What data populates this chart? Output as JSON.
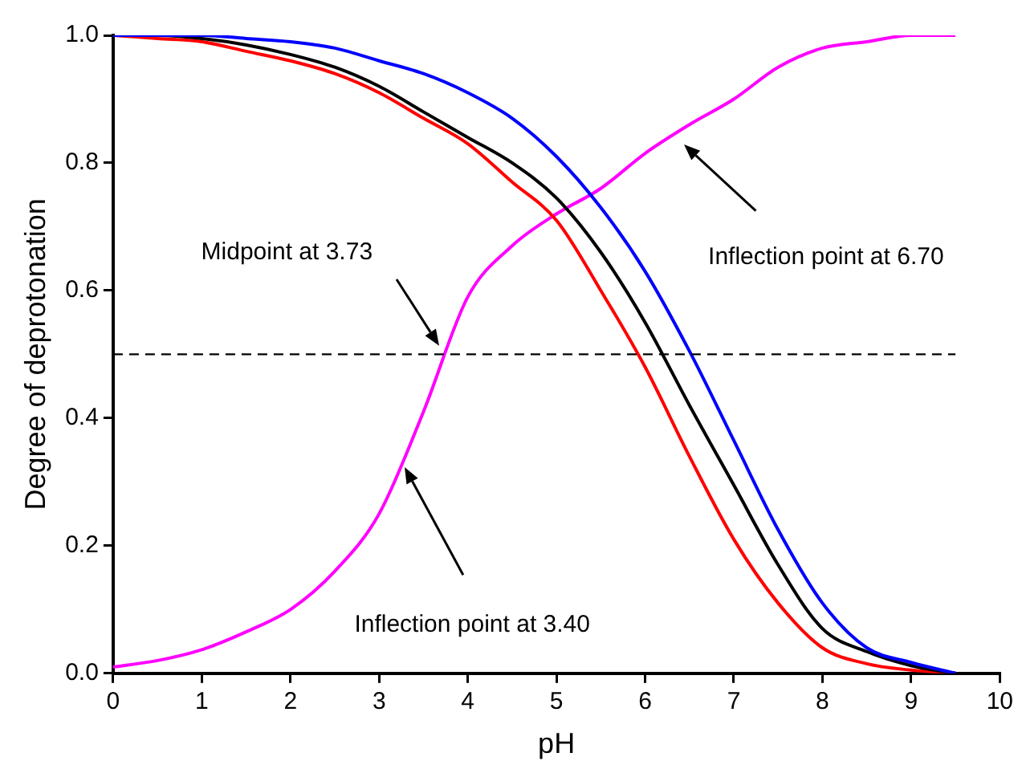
{
  "chart_data": {
    "type": "line",
    "xlabel": "pH",
    "ylabel": "Degree of deprotonation",
    "x": [
      0,
      0.5,
      1,
      1.5,
      2,
      2.5,
      3,
      3.5,
      4,
      4.5,
      5,
      5.5,
      6,
      6.5,
      7,
      7.5,
      8,
      8.5,
      9,
      9.5
    ],
    "series": [
      {
        "color": "#0000ff",
        "values": [
          1.0,
          1.0,
          1.0,
          0.995,
          0.99,
          0.98,
          0.96,
          0.94,
          0.91,
          0.87,
          0.81,
          0.73,
          0.63,
          0.505,
          0.365,
          0.225,
          0.11,
          0.04,
          0.017,
          0.0
        ]
      },
      {
        "color": "#000000",
        "values": [
          1.0,
          1.0,
          0.995,
          0.985,
          0.97,
          0.95,
          0.92,
          0.88,
          0.84,
          0.8,
          0.745,
          0.66,
          0.55,
          0.42,
          0.295,
          0.17,
          0.07,
          0.034,
          0.012,
          0.0
        ]
      },
      {
        "color": "#ff0000",
        "values": [
          1.0,
          0.995,
          0.99,
          0.975,
          0.96,
          0.94,
          0.91,
          0.87,
          0.83,
          0.77,
          0.71,
          0.6,
          0.48,
          0.34,
          0.21,
          0.11,
          0.04,
          0.015,
          0.005,
          0.0
        ]
      },
      {
        "color": "#ff00ff",
        "values": [
          0.01,
          0.02,
          0.037,
          0.065,
          0.1,
          0.16,
          0.25,
          0.41,
          0.59,
          0.67,
          0.72,
          0.76,
          0.815,
          0.86,
          0.9,
          0.95,
          0.98,
          0.99,
          1.0,
          1.0
        ]
      }
    ],
    "xlim": [
      0,
      10
    ],
    "xticks": [
      0,
      1,
      2,
      3,
      4,
      5,
      6,
      7,
      8,
      9,
      10
    ],
    "ylim": [
      0,
      1.0
    ],
    "yticks": [
      {
        "value": 0,
        "label": "0.0"
      },
      {
        "value": 0.2,
        "label": "0.2"
      },
      {
        "value": 0.4,
        "label": "0.4"
      },
      {
        "value": 0.6,
        "label": "0.6"
      },
      {
        "value": 0.8,
        "label": "0.8"
      },
      {
        "value": 1.0,
        "label": "1.0"
      }
    ],
    "ref_lines": [
      {
        "axis": "y",
        "value": 0.5,
        "color": "#000000",
        "line_style": "dashed"
      }
    ],
    "annotations": [
      "Midpoint at 3.73",
      "Inflection point at 3.40",
      "Inflection point at 6.70"
    ],
    "grid": false,
    "legend": false,
    "marker": "none",
    "line_style": "solid"
  }
}
